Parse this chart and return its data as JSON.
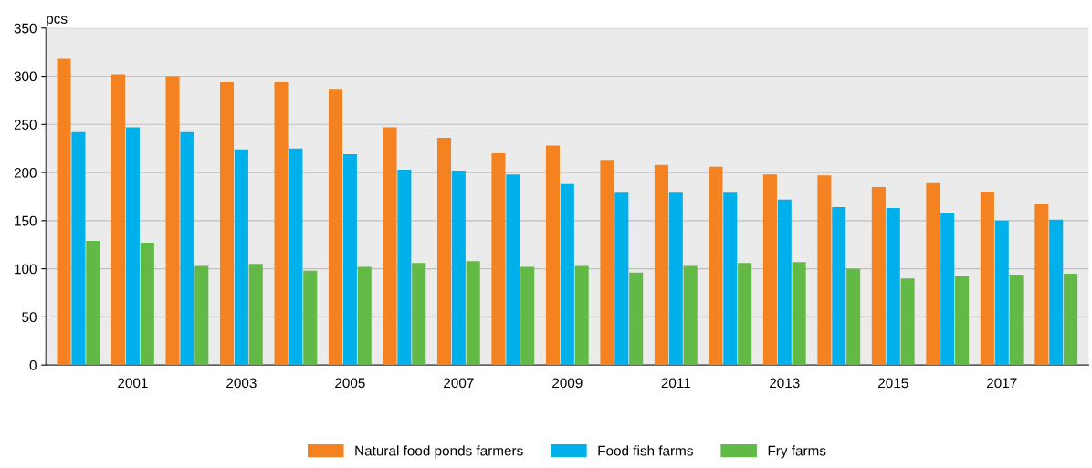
{
  "chart_data": {
    "type": "bar",
    "ylabel": "pcs",
    "categories": [
      null,
      "2001",
      null,
      "2003",
      null,
      "2005",
      null,
      "2007",
      null,
      "2009",
      null,
      "2011",
      null,
      "2013",
      null,
      "2015",
      null,
      "2017",
      null
    ],
    "series": [
      {
        "name": "Natural food ponds farmers",
        "color": "#f58220",
        "values": [
          318,
          302,
          300,
          294,
          294,
          286,
          247,
          236,
          220,
          228,
          213,
          208,
          206,
          198,
          197,
          185,
          189,
          180,
          167
        ]
      },
      {
        "name": "Food fish farms",
        "color": "#00b0ea",
        "values": [
          242,
          247,
          242,
          224,
          225,
          219,
          203,
          202,
          198,
          188,
          179,
          179,
          179,
          172,
          164,
          163,
          158,
          150,
          151
        ]
      },
      {
        "name": "Fry farms",
        "color": "#63b946",
        "values": [
          129,
          127,
          103,
          105,
          98,
          102,
          106,
          108,
          102,
          103,
          96,
          103,
          106,
          107,
          100,
          90,
          92,
          94,
          95
        ]
      }
    ],
    "ylim": [
      0,
      350
    ],
    "yticks": [
      0,
      50,
      100,
      150,
      200,
      250,
      300,
      350
    ],
    "grid": "y",
    "legend": "bottom"
  }
}
